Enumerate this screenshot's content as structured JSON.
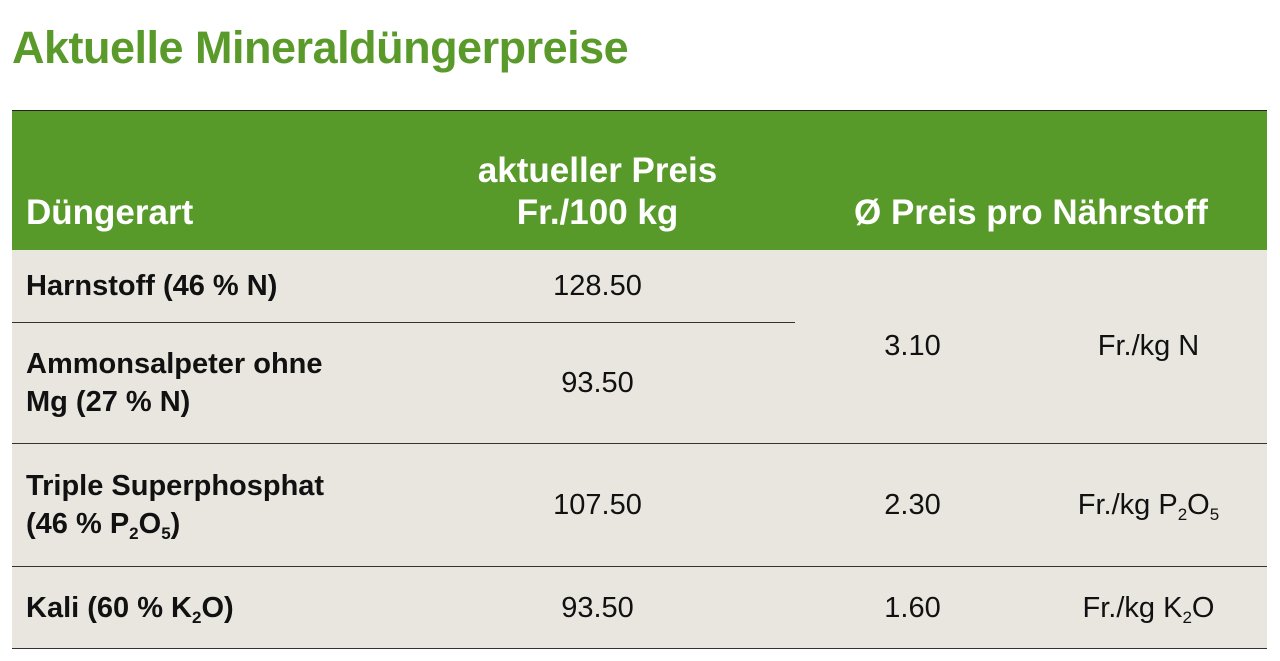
{
  "title": "Aktuelle Mineraldüngerpreise",
  "header": {
    "col1": "Düngerart",
    "col2_line1": "aktueller Preis",
    "col2_line2": "Fr./100 kg",
    "col3": "Ø Preis pro Nährstoff"
  },
  "rows": [
    {
      "name": "Harnstoff (46 % N)",
      "price": "128.50"
    },
    {
      "name_line1": "Ammonsalpeter ohne",
      "name_line2": "Mg (27 % N)",
      "price": "93.50"
    },
    {
      "name_line1": "Triple Superphosphat",
      "name_line2_a": "(46 % P",
      "name_line2_sub1": "2",
      "name_line2_b": "O",
      "name_line2_sub2": "5",
      "name_line2_c": ")",
      "price": "107.50",
      "avg": "2.30",
      "unit_a": "Fr./kg P",
      "unit_sub1": "2",
      "unit_b": "O",
      "unit_sub2": "5"
    },
    {
      "name_a": "Kali (60 % K",
      "name_sub": "2",
      "name_b": "O)",
      "price": "93.50",
      "avg": "1.60",
      "unit_a": "Fr./kg K",
      "unit_sub": "2",
      "unit_b": "O"
    }
  ],
  "nitrogen_group": {
    "avg": "3.10",
    "unit": "Fr./kg N"
  },
  "colors": {
    "accent": "#589a2a",
    "title": "#5a9a2a",
    "row_bg": "#e9e6e0"
  }
}
